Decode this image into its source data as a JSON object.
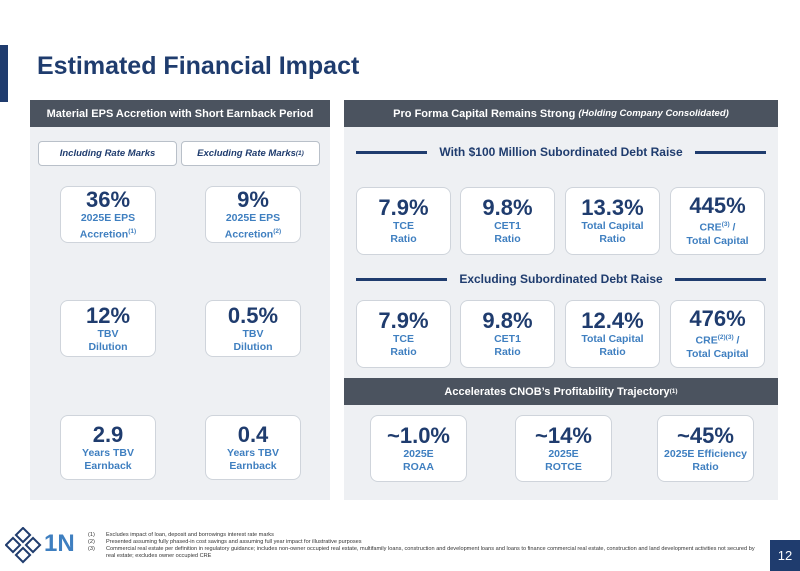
{
  "title": "Estimated Financial Impact",
  "left": {
    "header": "Material EPS Accretion with Short Earnback Period",
    "tabs": [
      [
        "Including Rate Marks"
      ],
      [
        "Excluding Rate Marks",
        {
          "sup": "(1)"
        }
      ]
    ],
    "metrics": [
      {
        "value": "36%",
        "label": [
          [
            "2025E EPS"
          ],
          [
            "Accretion",
            {
              "sup": "(1)"
            }
          ]
        ]
      },
      {
        "value": "9%",
        "label": [
          [
            "2025E EPS"
          ],
          [
            "Accretion",
            {
              "sup": "(2)"
            }
          ]
        ]
      },
      {
        "value": "12%",
        "label": [
          [
            "TBV"
          ],
          [
            "Dilution"
          ]
        ]
      },
      {
        "value": "0.5%",
        "label": [
          [
            "TBV"
          ],
          [
            "Dilution"
          ]
        ]
      },
      {
        "value": "2.9",
        "label": [
          [
            "Years TBV"
          ],
          [
            "Earnback"
          ]
        ]
      },
      {
        "value": "0.4",
        "label": [
          [
            "Years TBV"
          ],
          [
            "Earnback"
          ]
        ]
      }
    ]
  },
  "right": {
    "header": "Pro Forma Capital Remains Strong",
    "header_note": "(Holding Company Consolidated)",
    "sections": [
      {
        "heading": "With $100 Million Subordinated Debt Raise",
        "metrics": [
          {
            "value": "7.9%",
            "label": [
              [
                "TCE"
              ],
              [
                "Ratio"
              ]
            ]
          },
          {
            "value": "9.8%",
            "label": [
              [
                "CET1"
              ],
              [
                "Ratio"
              ]
            ]
          },
          {
            "value": "13.3%",
            "label": [
              [
                "Total Capital"
              ],
              [
                "Ratio"
              ]
            ]
          },
          {
            "value": "445%",
            "label": [
              [
                "CRE",
                {
                  "sup": "(3)"
                },
                " /"
              ],
              [
                "Total Capital"
              ]
            ]
          }
        ]
      },
      {
        "heading": "Excluding Subordinated Debt Raise",
        "metrics": [
          {
            "value": "7.9%",
            "label": [
              [
                "TCE"
              ],
              [
                "Ratio"
              ]
            ]
          },
          {
            "value": "9.8%",
            "label": [
              [
                "CET1"
              ],
              [
                "Ratio"
              ]
            ]
          },
          {
            "value": "12.4%",
            "label": [
              [
                "Total Capital"
              ],
              [
                "Ratio"
              ]
            ]
          },
          {
            "value": "476%",
            "label": [
              [
                "CRE",
                {
                  "sup": "(2)(3)"
                },
                " /"
              ],
              [
                "Total Capital"
              ]
            ]
          }
        ]
      }
    ],
    "profitability": {
      "header": [
        "Accelerates CNOB’s Profitability Trajectory",
        {
          "sup": "(1)"
        }
      ],
      "metrics": [
        {
          "value": "~1.0%",
          "label": [
            [
              "2025E"
            ],
            [
              "ROAA"
            ]
          ]
        },
        {
          "value": "~14%",
          "label": [
            [
              "2025E"
            ],
            [
              "ROTCE"
            ]
          ]
        },
        {
          "value": "~45%",
          "label": [
            [
              "2025E Efficiency"
            ],
            [
              "Ratio"
            ]
          ]
        }
      ]
    }
  },
  "footnotes": [
    {
      "marker": "(1)",
      "text": "Excludes impact of loan, deposit and borrowings interest rate marks"
    },
    {
      "marker": "(2)",
      "text": "Presented assuming fully phased-in cost savings and assuming full year impact for illustrative purposes"
    },
    {
      "marker": "(3)",
      "text": "Commercial real estate per definition in regulatory guidance; includes non-owner occupied real estate, multifamily loans, construction and development loans and loans to finance commercial real estate, construction and land development activities not secured by real estate; excludes owner occupied CRE"
    }
  ],
  "logo": "1N",
  "page_number": "12"
}
